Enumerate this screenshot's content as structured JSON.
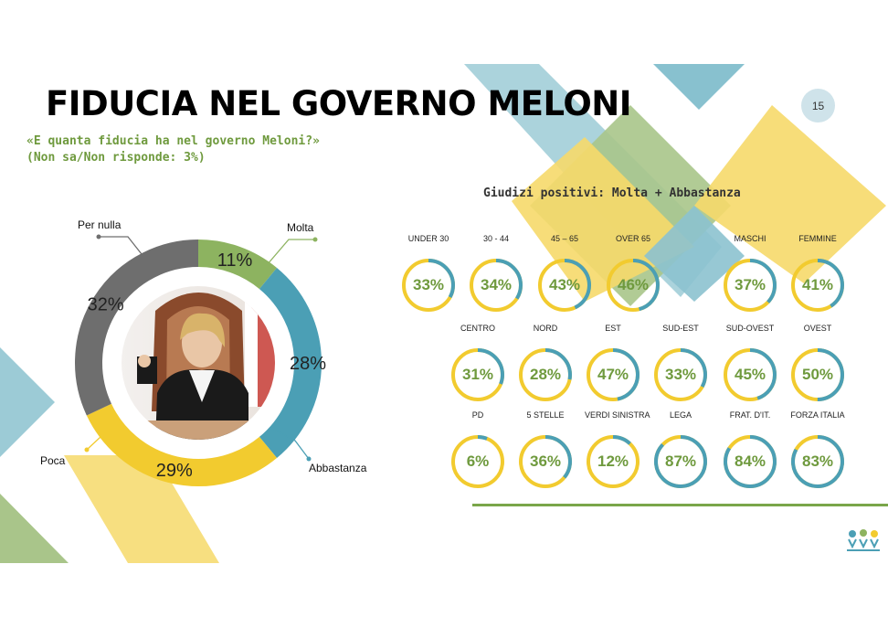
{
  "title": "FIDUCIA NEL GOVERNO MELONI",
  "question_line1": "«E quanta fiducia ha nel governo Meloni?»",
  "question_line2": "(Non sa/Non risponde: 3%)",
  "page_number": "15",
  "subhead": "Giudizi positivi: Molta + Abbastanza",
  "colors": {
    "green": "#8db360",
    "teal": "#4b9fb5",
    "yellow": "#f2cb2f",
    "gray": "#6e6e6e",
    "accent_text": "#6f9a3e"
  },
  "chart_data": [
    {
      "type": "pie",
      "variant": "donut",
      "categories": [
        "Molta",
        "Abbastanza",
        "Poca",
        "Per nulla"
      ],
      "values": [
        11,
        28,
        29,
        32
      ],
      "value_labels": [
        "11%",
        "28%",
        "29%",
        "32%"
      ],
      "colors": [
        "#8db360",
        "#4b9fb5",
        "#f2cb2f",
        "#6e6e6e"
      ]
    },
    {
      "type": "bar",
      "variant": "radial-gauges",
      "title": "Giudizi positivi: Molta + Abbastanza",
      "groups": [
        {
          "categories": [
            "UNDER 30",
            "30 - 44",
            "45 – 65",
            "OVER 65",
            "MASCHI",
            "FEMMINE"
          ],
          "values": [
            33,
            34,
            43,
            46,
            37,
            41
          ]
        },
        {
          "categories": [
            "CENTRO",
            "NORD",
            "EST",
            "SUD-EST",
            "SUD-OVEST",
            "OVEST"
          ],
          "values": [
            31,
            28,
            47,
            33,
            45,
            50
          ]
        },
        {
          "categories": [
            "PD",
            "5 STELLE",
            "VERDI SINISTRA",
            "LEGA",
            "FRAT. D'IT.",
            "FORZA ITALIA"
          ],
          "values": [
            6,
            36,
            12,
            87,
            84,
            83
          ]
        }
      ]
    }
  ]
}
